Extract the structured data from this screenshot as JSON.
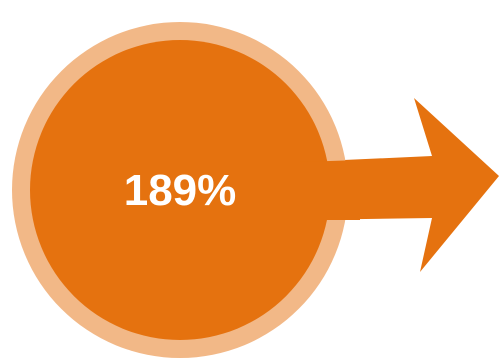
{
  "graphic": {
    "value_text": "189%",
    "icon": "arrow-right-icon",
    "colors": {
      "main": "#E5720F",
      "ring": "#F2B887",
      "arrow": "#E5720F",
      "text": "#FFFFFF"
    }
  }
}
